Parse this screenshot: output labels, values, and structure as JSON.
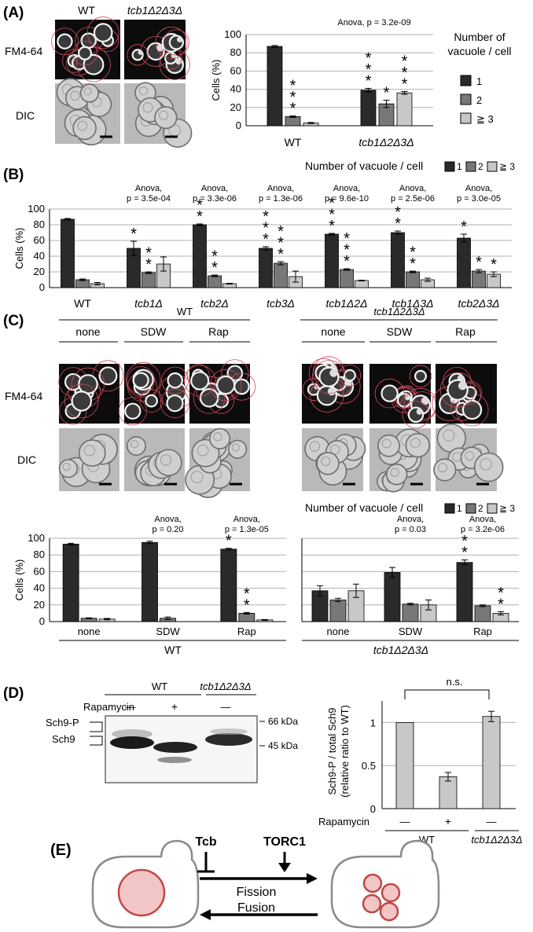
{
  "panel_a": {
    "label": "(A)",
    "strains": [
      "WT",
      "tcb1Δ2Δ3Δ"
    ],
    "rows": [
      "FM4-64",
      "DIC"
    ],
    "anova": "Anova, p = 3.2e-09",
    "legend_title_1": "Number of",
    "legend_title_2": "vacuole / cell",
    "legend": [
      "1",
      "2",
      "≧ 3"
    ]
  },
  "panel_b": {
    "label": "(B)",
    "legend_title": "Number of vacuole / cell",
    "legend": [
      "1",
      "2",
      "≧ 3"
    ],
    "anova_word": "Anova,",
    "anova": [
      "p = 3.5e-04",
      "p = 3.3e-06",
      "p = 1.3e-06",
      "p = 9.6e-10",
      "p = 2.5e-06",
      "p = 3.0e-05"
    ]
  },
  "panel_c": {
    "label": "(C)",
    "strains": [
      "WT",
      "tcb1Δ2Δ3Δ"
    ],
    "conditions": [
      "none",
      "SDW",
      "Rap"
    ],
    "rows": [
      "FM4-64",
      "DIC"
    ],
    "legend_title": "Number of vacuole / cell",
    "legend": [
      "1",
      "2",
      "≧ 3"
    ],
    "anova_word": "Anova,",
    "wt_anova": [
      "p = 0.20",
      "p = 1.3e-05"
    ],
    "tcb_anova": [
      "p = 0.03",
      "p = 3.2e-06"
    ]
  },
  "panel_d": {
    "label": "(D)",
    "blot_strains": [
      "WT",
      "tcb1Δ2Δ3Δ"
    ],
    "rapamycin_label": "Rapamycin",
    "treatments": [
      "—",
      "+",
      "—"
    ],
    "markers": [
      "66 kDa",
      "45 kDa"
    ],
    "bands": [
      "Sch9-P",
      "Sch9"
    ],
    "ns": "n.s.",
    "ylabel_1": "Sch9-P / total Sch9",
    "ylabel_2": "(relative ratio to WT)"
  },
  "panel_e": {
    "label": "(E)",
    "tcb": "Tcb",
    "torc1": "TORC1",
    "fission": "Fission",
    "fusion": "Fusion"
  },
  "colors": {
    "one": "#2a2a2a",
    "two": "#787878",
    "three": "#c8c8c8",
    "cell_outline": "#e06070",
    "vacuole": "#c04848",
    "vacuole_fill": "#f2c6c6"
  },
  "chart_data": [
    {
      "id": "A",
      "type": "bar",
      "categories": [
        "WT",
        "tcb1Δ2Δ3Δ"
      ],
      "series": [
        {
          "name": "1",
          "values": [
            87,
            39
          ],
          "errors": [
            1,
            2
          ]
        },
        {
          "name": "2",
          "values": [
            10,
            24
          ],
          "errors": [
            0.8,
            4
          ]
        },
        {
          "name": "≧ 3",
          "values": [
            3,
            36
          ],
          "errors": [
            0.6,
            1.5
          ]
        }
      ],
      "stars": [
        [
          0,
          3,
          0
        ],
        [
          3,
          1,
          3
        ]
      ],
      "ylabel": "Cells (%)",
      "ylim": [
        0,
        100
      ],
      "yticks": [
        0,
        20,
        40,
        60,
        80,
        100
      ],
      "grid": true
    },
    {
      "id": "B",
      "type": "bar",
      "categories": [
        "WT",
        "tcb1Δ",
        "tcb2Δ",
        "tcb3Δ",
        "tcb1Δ2Δ",
        "tcb1Δ3Δ",
        "tcb2Δ3Δ"
      ],
      "series": [
        {
          "name": "1",
          "values": [
            87,
            50,
            80,
            50,
            68,
            70,
            63
          ],
          "errors": [
            1,
            9,
            1,
            2,
            1,
            2,
            5
          ]
        },
        {
          "name": "2",
          "values": [
            10,
            19,
            15,
            31,
            23,
            20,
            21
          ],
          "errors": [
            1,
            1,
            1,
            2,
            1,
            1,
            2
          ]
        },
        {
          "name": "≧ 3",
          "values": [
            5,
            30,
            5,
            14,
            9,
            10,
            17
          ],
          "errors": [
            1.5,
            9,
            0.5,
            7,
            0.5,
            2,
            3
          ]
        }
      ],
      "stars": [
        [
          0,
          0,
          0
        ],
        [
          1,
          2,
          0
        ],
        [
          2,
          2,
          0
        ],
        [
          3,
          3,
          0
        ],
        [
          3,
          3,
          0
        ],
        [
          2,
          2,
          0
        ],
        [
          1,
          1,
          1
        ]
      ],
      "ylabel": "Cells (%)",
      "ylim": [
        0,
        100
      ],
      "yticks": [
        0,
        20,
        40,
        60,
        80,
        100
      ],
      "grid": true
    },
    {
      "id": "C-WT",
      "type": "bar",
      "categories": [
        "none",
        "SDW",
        "Rap"
      ],
      "group_label": "WT",
      "series": [
        {
          "name": "1",
          "values": [
            93,
            95,
            87
          ],
          "errors": [
            1,
            1.5,
            1
          ]
        },
        {
          "name": "2",
          "values": [
            4,
            4,
            10
          ],
          "errors": [
            0.5,
            1.5,
            1
          ]
        },
        {
          "name": "≧ 3",
          "values": [
            3,
            0,
            2
          ],
          "errors": [
            0.8,
            0,
            0.5
          ]
        }
      ],
      "stars": [
        [
          0,
          0,
          0
        ],
        [
          0,
          0,
          0
        ],
        [
          1,
          2,
          0
        ]
      ],
      "ylabel": "Cells (%)",
      "ylim": [
        0,
        100
      ],
      "yticks": [
        0,
        20,
        40,
        60,
        80,
        100
      ],
      "grid": true
    },
    {
      "id": "C-tcb",
      "type": "bar",
      "categories": [
        "none",
        "SDW",
        "Rap"
      ],
      "group_label": "tcb1Δ2Δ3Δ",
      "series": [
        {
          "name": "1",
          "values": [
            37,
            59,
            71
          ],
          "errors": [
            6,
            6,
            3
          ]
        },
        {
          "name": "2",
          "values": [
            26,
            21,
            19
          ],
          "errors": [
            2,
            1,
            1
          ]
        },
        {
          "name": "≧ 3",
          "values": [
            37,
            20,
            10
          ],
          "errors": [
            8,
            6,
            2
          ]
        }
      ],
      "stars": [
        [
          0,
          0,
          0
        ],
        [
          0,
          0,
          0
        ],
        [
          2,
          0,
          2
        ]
      ],
      "ylim": [
        0,
        100
      ],
      "yticks": [
        0,
        20,
        40,
        60,
        80,
        100
      ],
      "grid": true
    },
    {
      "id": "D",
      "type": "bar",
      "categories": [
        "WT —",
        "WT +",
        "tcb1Δ2Δ3Δ —"
      ],
      "values": [
        1.0,
        0.37,
        1.07
      ],
      "errors": [
        0,
        0.05,
        0.06
      ],
      "ylabel": "Sch9-P / total Sch9 (relative ratio to WT)",
      "ylim": [
        0,
        1.25
      ],
      "yticks": [
        0,
        0.5,
        1
      ],
      "grid": true
    }
  ]
}
